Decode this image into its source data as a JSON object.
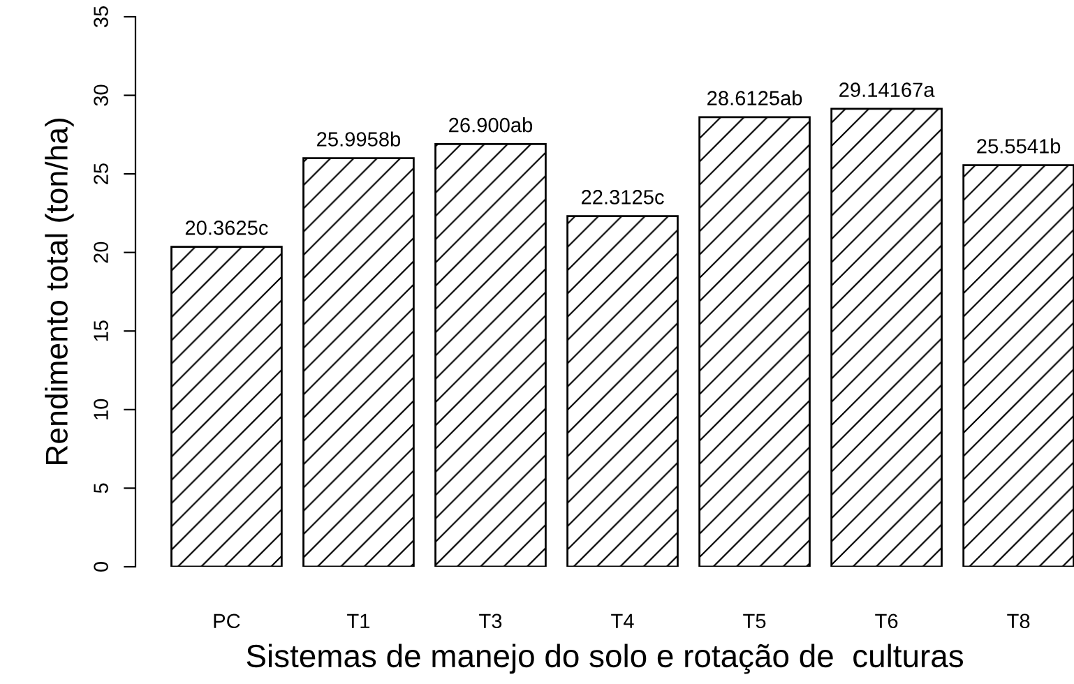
{
  "chart_data": {
    "type": "bar",
    "xlabel": "Sistemas de manejo do solo e rotação de  culturas",
    "ylabel": "Rendimento total (ton/ha)",
    "categories": [
      "PC",
      "T1",
      "T3",
      "T4",
      "T5",
      "T6",
      "T8"
    ],
    "values": [
      20.3625,
      25.9958,
      26.9,
      22.3125,
      28.6125,
      29.14167,
      25.5541
    ],
    "value_labels": [
      "20.3625c",
      "25.9958b",
      "26.900ab",
      "22.3125c",
      "28.6125ab",
      "29.14167a",
      "25.5541b"
    ],
    "color": "#000000",
    "ylim": [
      0,
      35
    ],
    "yticks": [
      0,
      5,
      10,
      15,
      20,
      25,
      30,
      35
    ],
    "grid": false,
    "legend": false
  }
}
